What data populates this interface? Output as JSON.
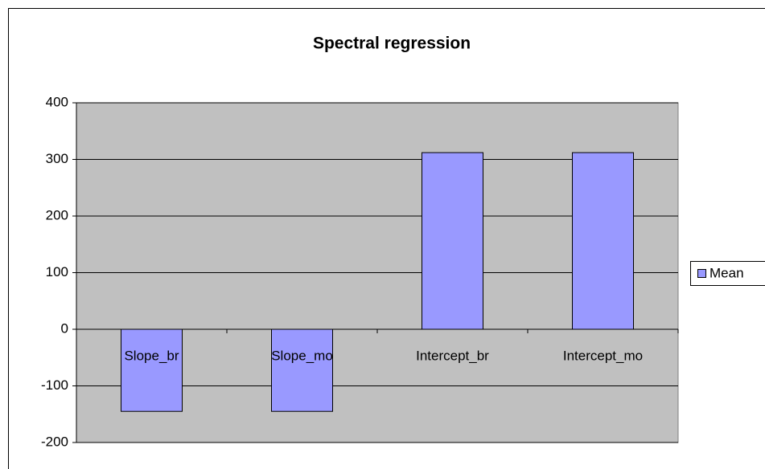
{
  "chart_data": {
    "type": "bar",
    "title": "Spectral regression",
    "categories": [
      "Slope_br",
      "Slope_mo",
      "Intercept_br",
      "Intercept_mo"
    ],
    "series": [
      {
        "name": "Mean",
        "color": "#9999ff",
        "values": [
          -145,
          -145,
          312,
          312
        ]
      }
    ],
    "ylim": [
      -200,
      400
    ],
    "yticks": [
      -200,
      -100,
      0,
      100,
      200,
      300,
      400
    ],
    "grid": true,
    "legend": "right"
  }
}
